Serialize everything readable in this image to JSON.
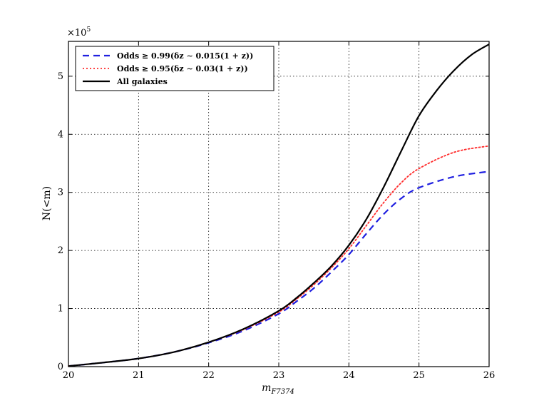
{
  "chart_data": {
    "type": "line",
    "xlabel": "m",
    "xlabel_sub": "F7374",
    "ylabel": "N(<m)",
    "scale_base": "×10",
    "scale_exp": "5",
    "xlim": [
      20,
      26
    ],
    "ylim": [
      0,
      5.6
    ],
    "xticks": [
      "20",
      "21",
      "22",
      "23",
      "24",
      "25",
      "26"
    ],
    "yticks": [
      "0",
      "1",
      "2",
      "3",
      "4",
      "5"
    ],
    "grid": true,
    "legend_position": "top-left",
    "series": [
      {
        "name": "Odds ≥ 0.99(δz ∼ 0.015(1 + z))",
        "color": "#1f1fe0",
        "style": "dashed",
        "x": [
          20,
          20.5,
          21,
          21.5,
          22,
          22.5,
          23,
          23.25,
          23.5,
          23.75,
          24,
          24.25,
          24.5,
          24.75,
          25,
          25.5,
          26
        ],
        "y": [
          0.01,
          0.07,
          0.14,
          0.25,
          0.41,
          0.62,
          0.91,
          1.12,
          1.35,
          1.63,
          1.93,
          2.29,
          2.63,
          2.9,
          3.08,
          3.27,
          3.36
        ]
      },
      {
        "name": "Odds ≥ 0.95(δz ∼ 0.03(1 + z))",
        "color": "#ff2a2a",
        "style": "dotted",
        "x": [
          20,
          20.5,
          21,
          21.5,
          22,
          22.5,
          23,
          23.25,
          23.5,
          23.75,
          24,
          24.25,
          24.5,
          24.75,
          25,
          25.5,
          26
        ],
        "y": [
          0.01,
          0.07,
          0.14,
          0.25,
          0.42,
          0.64,
          0.94,
          1.16,
          1.41,
          1.7,
          2.03,
          2.43,
          2.83,
          3.17,
          3.41,
          3.69,
          3.8
        ]
      },
      {
        "name": "All galaxies",
        "color": "#000000",
        "style": "solid",
        "x": [
          20,
          20.5,
          21,
          21.5,
          22,
          22.5,
          23,
          23.25,
          23.5,
          23.75,
          24,
          24.25,
          24.5,
          24.75,
          25,
          25.25,
          25.5,
          25.75,
          26
        ],
        "y": [
          0.01,
          0.07,
          0.14,
          0.25,
          0.42,
          0.65,
          0.96,
          1.18,
          1.44,
          1.73,
          2.09,
          2.54,
          3.1,
          3.72,
          4.32,
          4.75,
          5.1,
          5.37,
          5.55
        ]
      }
    ]
  }
}
